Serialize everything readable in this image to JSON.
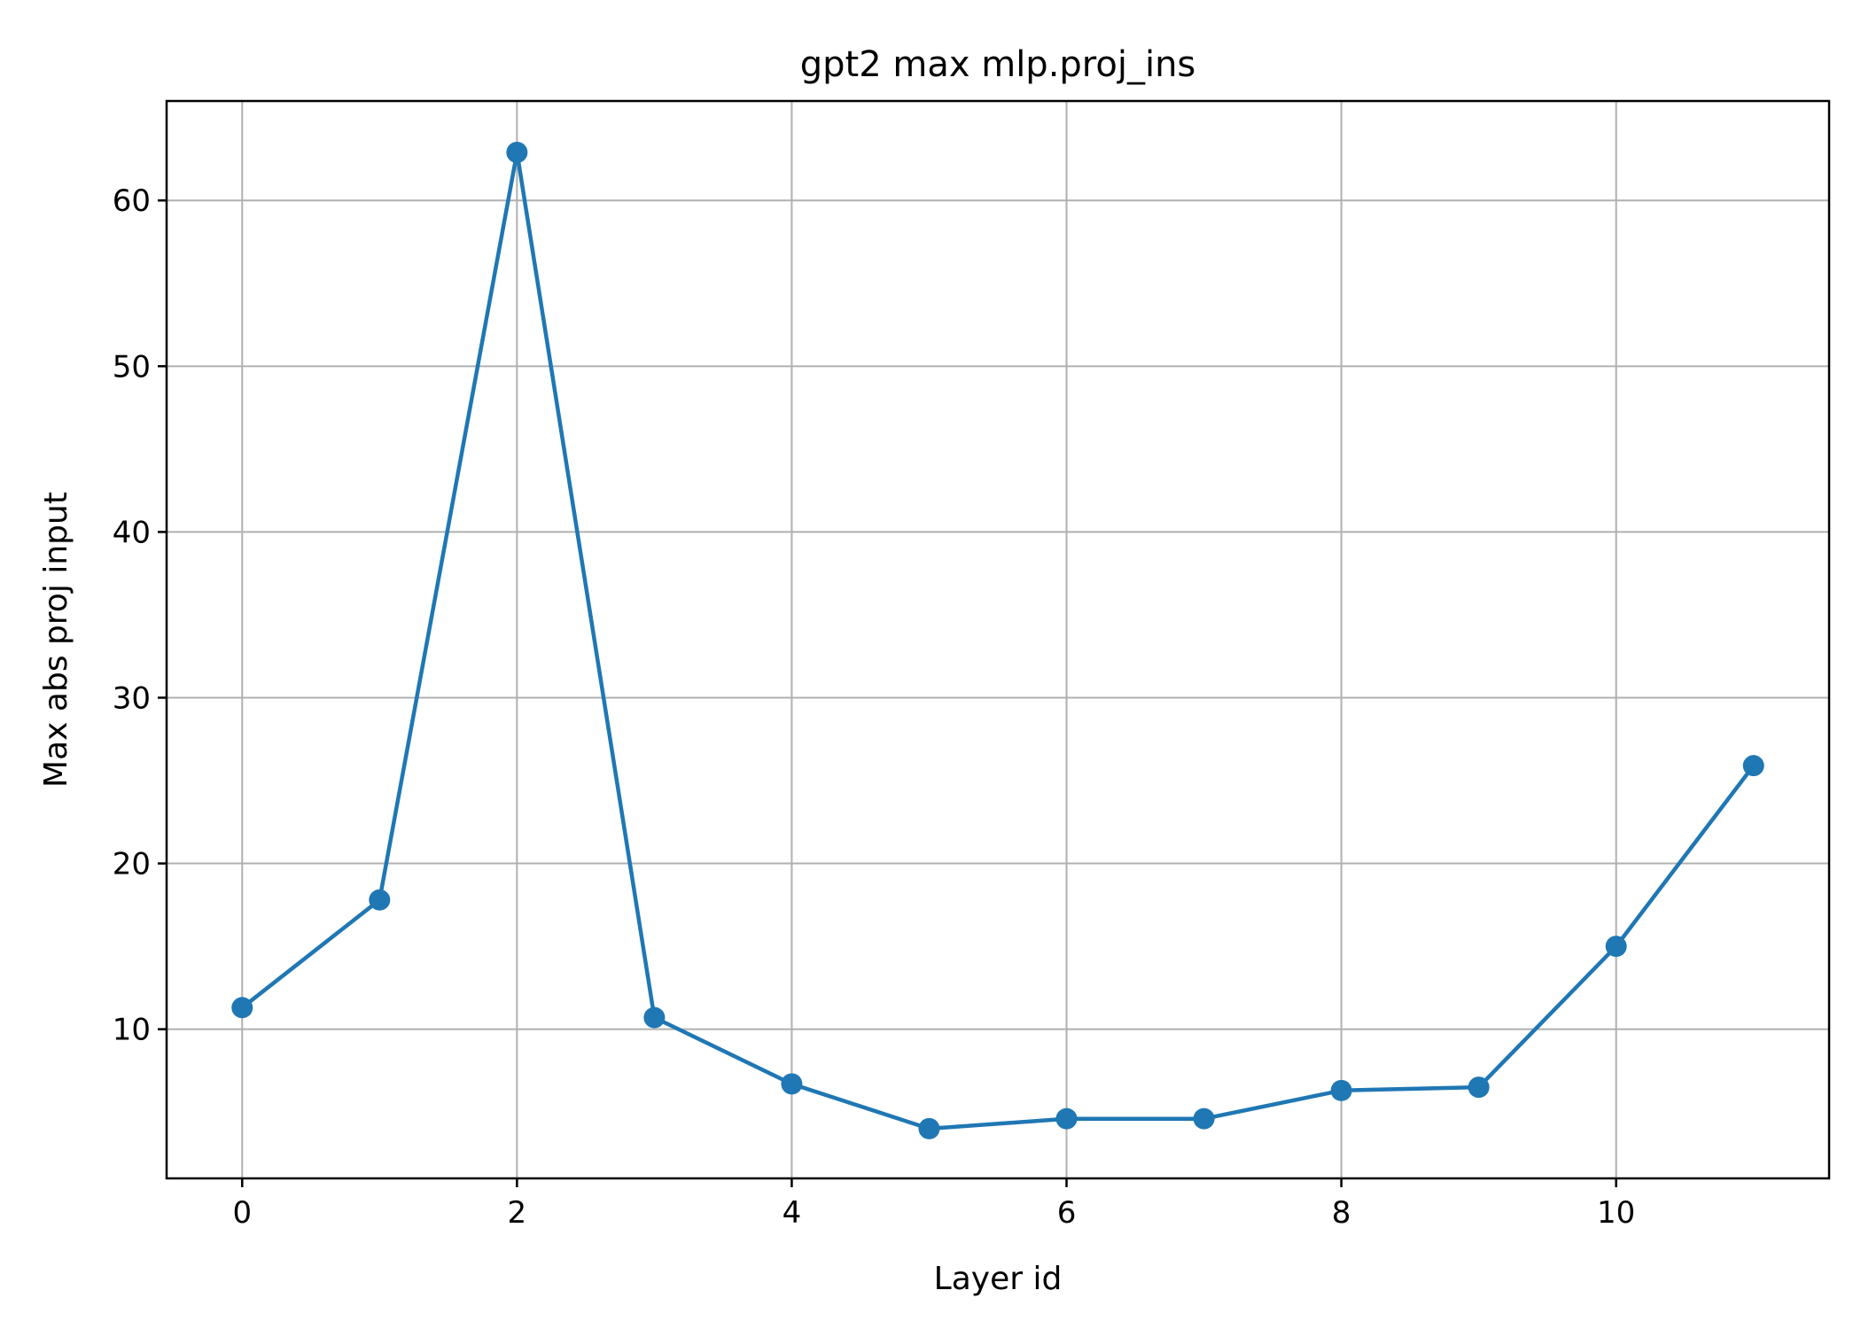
{
  "chart_data": {
    "type": "line",
    "title": "gpt2 max mlp.proj_ins",
    "xlabel": "Layer id",
    "ylabel": "Max abs proj input",
    "xlim": [
      -0.55,
      11.55
    ],
    "ylim": [
      1.0,
      66.0
    ],
    "x_ticks": [
      0,
      2,
      4,
      6,
      8,
      10
    ],
    "y_ticks": [
      10,
      20,
      30,
      40,
      50,
      60
    ],
    "grid": true,
    "series": [
      {
        "color": "#1f77b4",
        "marker": "circle",
        "x": [
          0,
          1,
          2,
          3,
          4,
          5,
          6,
          7,
          8,
          9,
          10,
          11
        ],
        "y": [
          11.3,
          17.8,
          62.9,
          10.7,
          6.7,
          4.0,
          4.6,
          4.6,
          6.3,
          6.5,
          15.0,
          25.9
        ]
      }
    ]
  }
}
